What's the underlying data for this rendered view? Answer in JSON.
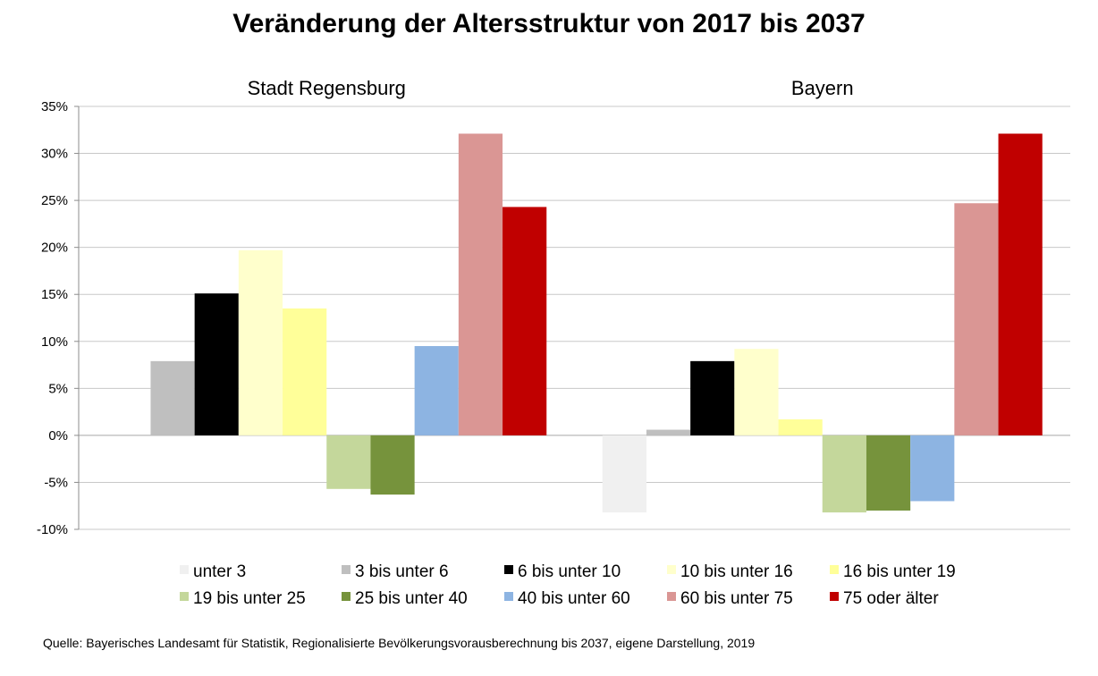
{
  "chart_data": {
    "type": "bar",
    "title": "Veränderung der Altersstruktur von 2017 bis 2037",
    "categories": [
      "Stadt Regensburg",
      "Bayern"
    ],
    "series": [
      {
        "name": "unter 3",
        "color": "#f0f0f0",
        "values": [
          0,
          -8.2
        ]
      },
      {
        "name": "3 bis unter 6",
        "color": "#bfbfbf",
        "values": [
          7.9,
          0.6
        ]
      },
      {
        "name": "6 bis unter 10",
        "color": "#000000",
        "values": [
          15.1,
          7.9
        ]
      },
      {
        "name": "10 bis unter 16",
        "color": "#ffffcc",
        "values": [
          19.7,
          9.2
        ]
      },
      {
        "name": "16 bis unter 19",
        "color": "#ffff99",
        "values": [
          13.5,
          1.7
        ]
      },
      {
        "name": "19 bis unter 25",
        "color": "#c4d79b",
        "values": [
          -5.7,
          -8.2
        ]
      },
      {
        "name": "25 bis unter 40",
        "color": "#76933c",
        "values": [
          -6.3,
          -8.0
        ]
      },
      {
        "name": "40 bis unter 60",
        "color": "#8db4e2",
        "values": [
          9.5,
          -7.0
        ]
      },
      {
        "name": "60 bis unter 75",
        "color": "#da9694",
        "values": [
          32.1,
          24.7
        ]
      },
      {
        "name": "75 oder älter",
        "color": "#c00000",
        "values": [
          24.3,
          32.1
        ]
      }
    ],
    "ylim": [
      -10,
      35
    ],
    "yticks": [
      35,
      30,
      25,
      20,
      15,
      10,
      5,
      0,
      -5,
      -10
    ],
    "ytick_labels": [
      "35%",
      "30%",
      "25%",
      "20%",
      "15%",
      "10%",
      "5%",
      "0%",
      "-5%",
      "-10%"
    ],
    "grid": true,
    "legend_position": "bottom",
    "source": "Quelle: Bayerisches Landesamt für Statistik, Regionalisierte Bevölkerungsvorausberechnung bis 2037, eigene Darstellung, 2019"
  }
}
